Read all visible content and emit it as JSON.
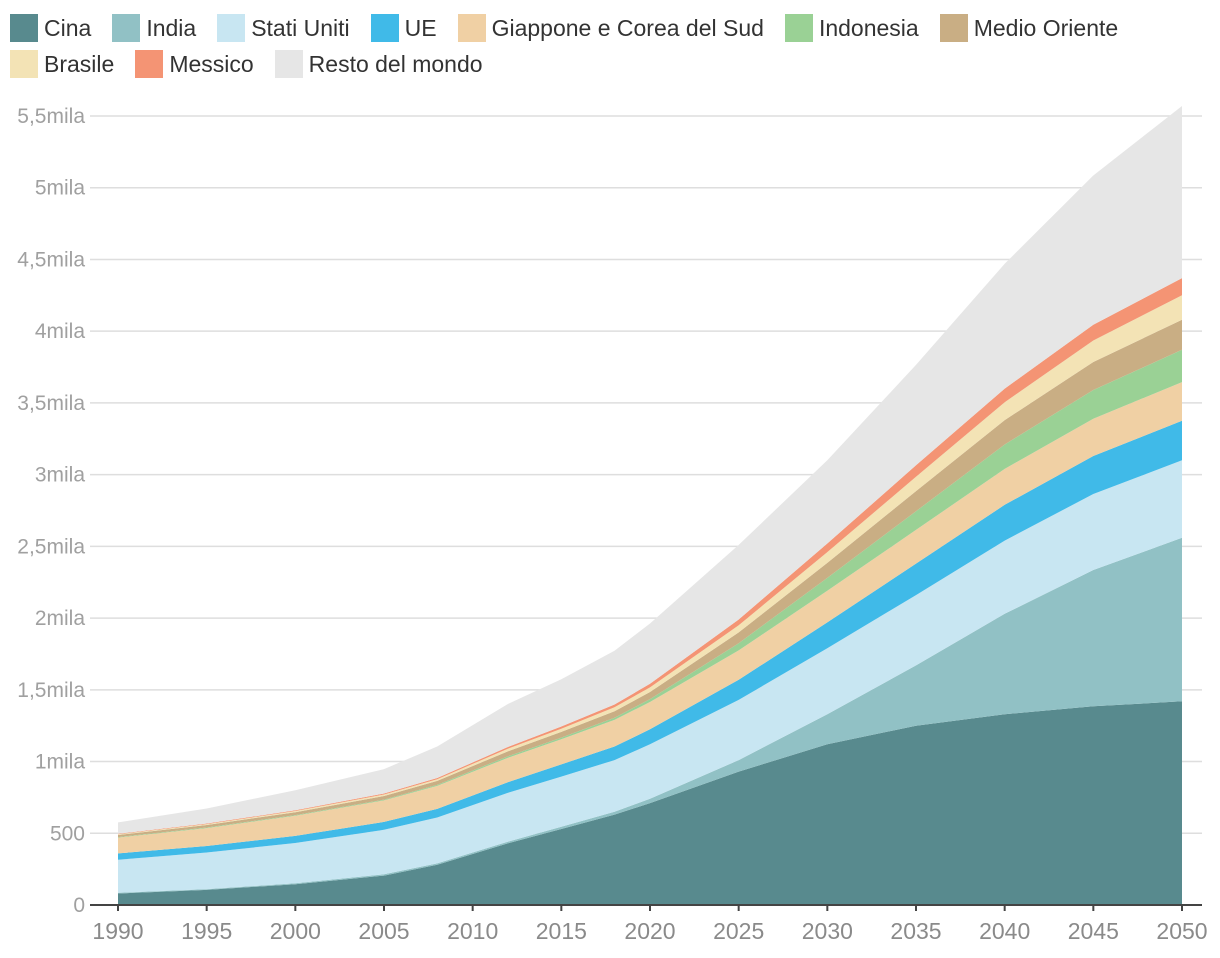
{
  "chart_data": {
    "type": "area",
    "stacked": true,
    "title": "",
    "xlabel": "",
    "ylabel": "",
    "x": [
      1990,
      1995,
      2000,
      2005,
      2008,
      2012,
      2015,
      2018,
      2020,
      2025,
      2030,
      2035,
      2040,
      2045,
      2050
    ],
    "xlim": [
      1990,
      2050
    ],
    "ylim": [
      0,
      5500
    ],
    "x_ticks": [
      {
        "value": 1990,
        "label": "1990"
      },
      {
        "value": 1995,
        "label": "1995"
      },
      {
        "value": 2000,
        "label": "2000"
      },
      {
        "value": 2005,
        "label": "2005"
      },
      {
        "value": 2010,
        "label": "2010"
      },
      {
        "value": 2015,
        "label": "2015"
      },
      {
        "value": 2020,
        "label": "2020"
      },
      {
        "value": 2025,
        "label": "2025"
      },
      {
        "value": 2030,
        "label": "2030"
      },
      {
        "value": 2035,
        "label": "2035"
      },
      {
        "value": 2040,
        "label": "2040"
      },
      {
        "value": 2045,
        "label": "2045"
      },
      {
        "value": 2050,
        "label": "2050"
      }
    ],
    "y_ticks": [
      {
        "value": 0,
        "label": "0"
      },
      {
        "value": 500,
        "label": "500"
      },
      {
        "value": 1000,
        "label": "1mila"
      },
      {
        "value": 1500,
        "label": "1,5mila"
      },
      {
        "value": 2000,
        "label": "2mila"
      },
      {
        "value": 2500,
        "label": "2,5mila"
      },
      {
        "value": 3000,
        "label": "3mila"
      },
      {
        "value": 3500,
        "label": "3,5mila"
      },
      {
        "value": 4000,
        "label": "4mila"
      },
      {
        "value": 4500,
        "label": "4,5mila"
      },
      {
        "value": 5000,
        "label": "5mila"
      },
      {
        "value": 5500,
        "label": "5,5mila"
      }
    ],
    "grid": true,
    "legend_position": "top",
    "series": [
      {
        "name": "Cina",
        "color": "#588a8e",
        "values": [
          80,
          105,
          145,
          205,
          280,
          430,
          530,
          630,
          710,
          930,
          1120,
          1250,
          1330,
          1385,
          1420
        ]
      },
      {
        "name": "India",
        "color": "#91c1c5",
        "values": [
          5,
          6,
          7,
          9,
          10,
          12,
          15,
          20,
          30,
          80,
          210,
          420,
          700,
          950,
          1140
        ]
      },
      {
        "name": "Stati Uniti",
        "color": "#c8e6f2",
        "values": [
          230,
          255,
          280,
          310,
          320,
          340,
          350,
          360,
          380,
          420,
          460,
          490,
          510,
          530,
          540
        ]
      },
      {
        "name": "UE",
        "color": "#40bae8",
        "values": [
          45,
          45,
          50,
          55,
          60,
          75,
          85,
          95,
          105,
          140,
          180,
          220,
          250,
          265,
          275
        ]
      },
      {
        "name": "Giappone e Corea del Sud",
        "color": "#f0d0a4",
        "values": [
          110,
          125,
          140,
          150,
          160,
          170,
          175,
          185,
          190,
          205,
          220,
          235,
          250,
          260,
          270
        ]
      },
      {
        "name": "Indonesia",
        "color": "#9ad195",
        "values": [
          3,
          4,
          5,
          6,
          7,
          10,
          12,
          15,
          20,
          50,
          90,
          130,
          170,
          200,
          225
        ]
      },
      {
        "name": "Medio Oriente",
        "color": "#c9ae84",
        "values": [
          15,
          18,
          20,
          25,
          28,
          35,
          40,
          45,
          50,
          75,
          105,
          140,
          170,
          195,
          210
        ]
      },
      {
        "name": "Brasile",
        "color": "#f3e3b5",
        "values": [
          5,
          6,
          8,
          10,
          12,
          18,
          22,
          28,
          32,
          50,
          75,
          100,
          125,
          150,
          170
        ]
      },
      {
        "name": "Messico",
        "color": "#f49474",
        "values": [
          3,
          4,
          5,
          7,
          8,
          12,
          15,
          20,
          25,
          40,
          60,
          80,
          95,
          110,
          120
        ]
      },
      {
        "name": "Resto del mondo",
        "color": "#e6e6e6",
        "values": [
          80,
          105,
          140,
          170,
          220,
          300,
          330,
          375,
          420,
          520,
          580,
          700,
          870,
          1040,
          1200
        ]
      }
    ]
  }
}
